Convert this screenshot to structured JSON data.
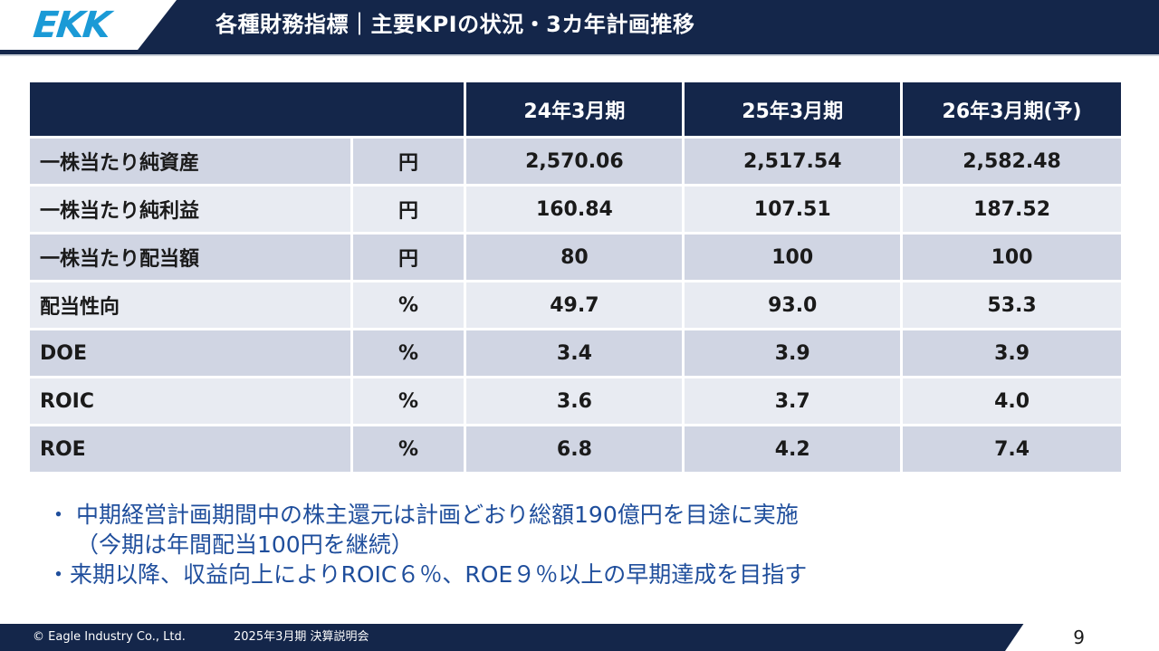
{
  "header": {
    "logo_text": "EKK",
    "title": "各種財務指標｜主要KPIの状況・3カ年計画推移"
  },
  "table": {
    "columns": [
      "24年3月期",
      "25年3月期",
      "26年3月期(予)"
    ],
    "rows": [
      {
        "label": "一株当たり純資産",
        "unit": "円",
        "values": [
          "2,570.06",
          "2,517.54",
          "2,582.48"
        ]
      },
      {
        "label": "一株当たり純利益",
        "unit": "円",
        "values": [
          "160.84",
          "107.51",
          "187.52"
        ]
      },
      {
        "label": "一株当たり配当額",
        "unit": "円",
        "values": [
          "80",
          "100",
          "100"
        ]
      },
      {
        "label": "配当性向",
        "unit": "%",
        "values": [
          "49.7",
          "93.0",
          "53.3"
        ]
      },
      {
        "label": "DOE",
        "unit": "%",
        "values": [
          "3.4",
          "3.9",
          "3.9"
        ]
      },
      {
        "label": "ROIC",
        "unit": "%",
        "values": [
          "3.6",
          "3.7",
          "4.0"
        ]
      },
      {
        "label": "ROE",
        "unit": "%",
        "values": [
          "6.8",
          "4.2",
          "7.4"
        ]
      }
    ]
  },
  "bullets": {
    "item1_marker": "・",
    "item1_line1": "中期経営計画期間中の株主還元は計画どおり総額190億円を目途に実施",
    "item1_line2": "（今期は年間配当100円を継続）",
    "item2": "・来期以降、収益向上によりROIC６％、ROE９％以上の早期達成を目指す"
  },
  "footer": {
    "copyright": "© Eagle Industry Co., Ltd.",
    "event": "2025年3月期 決算説明会",
    "page_number": "9"
  }
}
